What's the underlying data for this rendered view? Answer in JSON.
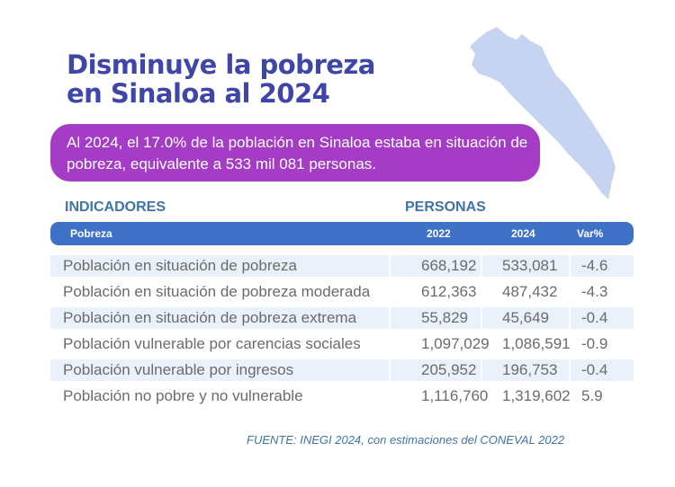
{
  "title": {
    "line1": "Disminuye la pobreza",
    "line2": "en Sinaloa al 2024"
  },
  "callout": "Al 2024, el 17.0% de la población en Sinaloa estaba en situación de pobreza, equivalente a 533 mil 081 personas.",
  "labels": {
    "indicadores": "INDICADORES",
    "personas": "PERSONAS"
  },
  "table": {
    "header": {
      "name": "Pobreza",
      "col2022": "2022",
      "col2024": "2024",
      "var": "Var%"
    },
    "rows": [
      {
        "name": "Población en situación de pobreza",
        "v2022": "668,192",
        "v2024": "533,081",
        "var": "-4.6"
      },
      {
        "name": "Población en situación de pobreza moderada",
        "v2022": "612,363",
        "v2024": "487,432",
        "var": "-4.3"
      },
      {
        "name": "Población en situación de pobreza extrema",
        "v2022": "55,829",
        "v2024": "45,649",
        "var": "-0.4"
      },
      {
        "name": "Población vulnerable por carencias sociales",
        "v2022": "1,097,029",
        "v2024": "1,086,591",
        "var": "-0.9"
      },
      {
        "name": "Población vulnerable por ingresos",
        "v2022": "205,952",
        "v2024": "196,753",
        "var": "-0.4"
      },
      {
        "name": "Población no pobre y no vulnerable",
        "v2022": "1,116,760",
        "v2024": "1,319,602",
        "var": "5.9"
      }
    ]
  },
  "source": "FUENTE: INEGI 2024, con estimaciones del CONEVAL 2022",
  "colors": {
    "title": "#3f46a8",
    "callout_bg": "#a43cc6",
    "header_bg": "#3f72c7",
    "row_alt_bg": "#eaf1fb",
    "map_fill": "#c7d4f1"
  },
  "icons": {
    "map": "sinaloa-map-icon"
  }
}
